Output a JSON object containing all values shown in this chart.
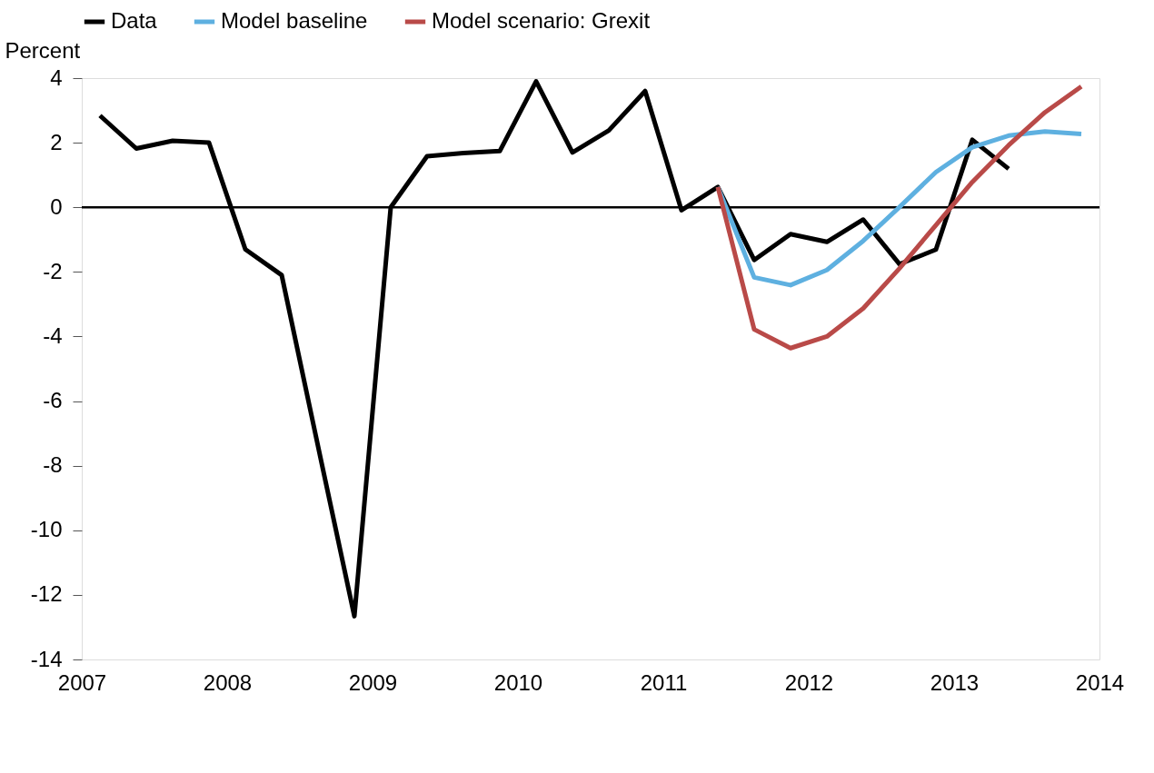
{
  "chart_data": {
    "type": "line",
    "ylabel": "Percent",
    "x": [
      2007.125,
      2007.375,
      2007.625,
      2007.875,
      2008.125,
      2008.375,
      2008.625,
      2008.875,
      2009.125,
      2009.375,
      2009.625,
      2009.875,
      2010.125,
      2010.375,
      2010.625,
      2010.875,
      2011.125,
      2011.375,
      2011.625,
      2011.875,
      2012.125,
      2012.375,
      2012.625,
      2012.875,
      2013.125,
      2013.375,
      2013.625,
      2013.875
    ],
    "xlim": [
      2007,
      2014
    ],
    "xticks": [
      2007,
      2008,
      2009,
      2010,
      2011,
      2012,
      2013,
      2014
    ],
    "ylim": [
      -14,
      4
    ],
    "yticks": [
      -14,
      -12,
      -10,
      -8,
      -6,
      -4,
      -2,
      0,
      2,
      4
    ],
    "series": [
      {
        "name": "Data",
        "color": "#000000",
        "values": [
          2.84,
          1.82,
          2.06,
          2.0,
          -1.3,
          -2.1,
          -7.4,
          -12.66,
          0.0,
          1.58,
          1.68,
          1.74,
          3.9,
          1.7,
          2.38,
          3.6,
          -0.09,
          0.63,
          -1.63,
          -0.83,
          -1.07,
          -0.38,
          -1.76,
          -1.31,
          2.09,
          1.19,
          null,
          null
        ]
      },
      {
        "name": "Model baseline",
        "color": "#5eb0e0",
        "values": [
          null,
          null,
          null,
          null,
          null,
          null,
          null,
          null,
          null,
          null,
          null,
          null,
          null,
          null,
          null,
          null,
          null,
          0.63,
          -2.17,
          -2.41,
          -1.94,
          -1.04,
          0.01,
          1.09,
          1.86,
          2.22,
          2.35,
          2.27
        ]
      },
      {
        "name": "Model scenario: Grexit",
        "color": "#b94a48",
        "values": [
          null,
          null,
          null,
          null,
          null,
          null,
          null,
          null,
          null,
          null,
          null,
          null,
          null,
          null,
          null,
          null,
          null,
          0.63,
          -3.78,
          -4.36,
          -4.0,
          -3.13,
          -1.89,
          -0.55,
          0.78,
          1.92,
          2.94,
          3.74
        ]
      }
    ],
    "ref_lines": [
      {
        "axis": "y",
        "value": 0,
        "color": "#000000"
      }
    ],
    "legend": "top",
    "grid": false,
    "marker": "none",
    "line_style": "solid"
  }
}
